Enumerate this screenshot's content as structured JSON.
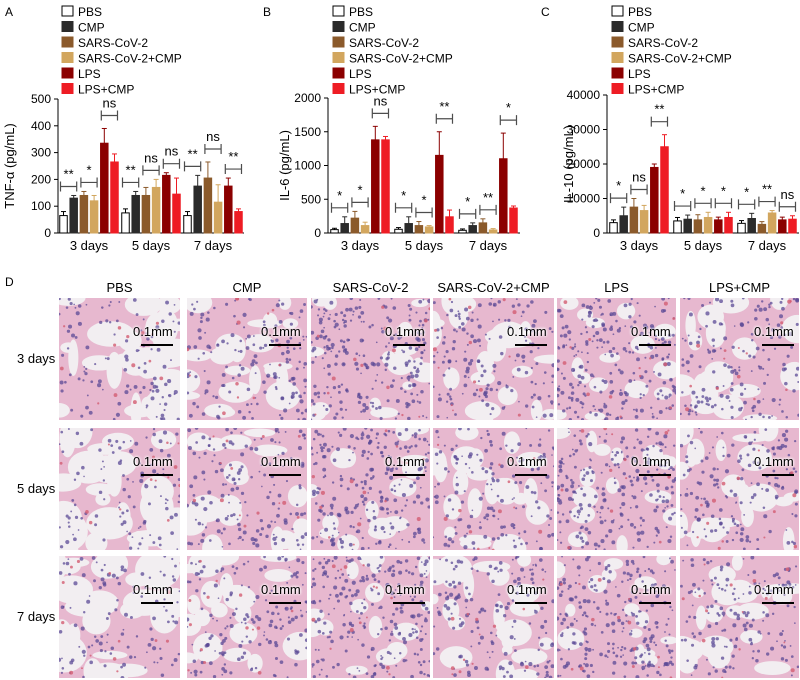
{
  "panel_letters": {
    "A": "A",
    "B": "B",
    "C": "C",
    "D": "D"
  },
  "chart_data": [
    {
      "panel": "A",
      "type": "bar",
      "title": "",
      "xlabel": "",
      "ylabel": "TNF-α (pg/mL)",
      "ylim": [
        0,
        500
      ],
      "yticks": [
        0,
        100,
        200,
        300,
        400,
        500
      ],
      "categories": [
        "3 days",
        "5 days",
        "7 days"
      ],
      "legend": "top-left",
      "grid": false,
      "series": [
        {
          "name": "PBS",
          "values": [
            65,
            75,
            65
          ],
          "errors": [
            15,
            15,
            15
          ]
        },
        {
          "name": "CMP",
          "values": [
            130,
            140,
            175
          ],
          "errors": [
            10,
            15,
            40
          ]
        },
        {
          "name": "SARS-CoV-2",
          "values": [
            140,
            140,
            205
          ],
          "errors": [
            15,
            30,
            60
          ]
        },
        {
          "name": "SARS-CoV-2+CMP",
          "values": [
            120,
            170,
            115
          ],
          "errors": [
            20,
            30,
            65
          ]
        },
        {
          "name": "LPS",
          "values": [
            335,
            215,
            175
          ],
          "errors": [
            55,
            10,
            30
          ]
        },
        {
          "name": "LPS+CMP",
          "values": [
            265,
            145,
            80
          ],
          "errors": [
            30,
            60,
            10
          ]
        }
      ],
      "annotations": [
        {
          "group": 0,
          "from": 0,
          "to": 1,
          "text": "**",
          "level": 1
        },
        {
          "group": 0,
          "from": 2,
          "to": 3,
          "text": "*",
          "level": 1
        },
        {
          "group": 0,
          "from": 4,
          "to": 5,
          "text": "ns",
          "level": 2
        },
        {
          "group": 1,
          "from": 0,
          "to": 1,
          "text": "**",
          "level": 1
        },
        {
          "group": 1,
          "from": 2,
          "to": 3,
          "text": "ns",
          "level": 1
        },
        {
          "group": 1,
          "from": 4,
          "to": 5,
          "text": "ns",
          "level": 1
        },
        {
          "group": 2,
          "from": 0,
          "to": 1,
          "text": "**",
          "level": 1
        },
        {
          "group": 2,
          "from": 2,
          "to": 3,
          "text": "ns",
          "level": 2
        },
        {
          "group": 2,
          "from": 4,
          "to": 5,
          "text": "**",
          "level": 1
        }
      ]
    },
    {
      "panel": "B",
      "type": "bar",
      "title": "",
      "xlabel": "",
      "ylabel": "IL-6 (pg/mL)",
      "ylim": [
        0,
        2000
      ],
      "yticks": [
        0,
        500,
        1000,
        1500,
        2000
      ],
      "categories": [
        "3 days",
        "5 days",
        "7 days"
      ],
      "legend": "top-left",
      "grid": false,
      "series": [
        {
          "name": "PBS",
          "values": [
            50,
            55,
            40
          ],
          "errors": [
            20,
            25,
            20
          ]
        },
        {
          "name": "CMP",
          "values": [
            140,
            140,
            110
          ],
          "errors": [
            100,
            100,
            40
          ]
        },
        {
          "name": "SARS-CoV-2",
          "values": [
            220,
            110,
            150
          ],
          "errors": [
            100,
            60,
            60
          ]
        },
        {
          "name": "SARS-CoV-2+CMP",
          "values": [
            110,
            90,
            45
          ],
          "errors": [
            50,
            20,
            20
          ]
        },
        {
          "name": "LPS",
          "values": [
            1380,
            1150,
            1100
          ],
          "errors": [
            200,
            350,
            380
          ]
        },
        {
          "name": "LPS+CMP",
          "values": [
            1380,
            240,
            370
          ],
          "errors": [
            50,
            100,
            30
          ]
        }
      ],
      "annotations": [
        {
          "group": 0,
          "from": 0,
          "to": 1,
          "text": "*",
          "level": 1
        },
        {
          "group": 0,
          "from": 2,
          "to": 3,
          "text": "*",
          "level": 1
        },
        {
          "group": 0,
          "from": 4,
          "to": 5,
          "text": "ns",
          "level": 2
        },
        {
          "group": 1,
          "from": 0,
          "to": 1,
          "text": "*",
          "level": 1
        },
        {
          "group": 1,
          "from": 2,
          "to": 3,
          "text": "*",
          "level": 1
        },
        {
          "group": 1,
          "from": 4,
          "to": 5,
          "text": "**",
          "level": 2
        },
        {
          "group": 2,
          "from": 0,
          "to": 1,
          "text": "*",
          "level": 1
        },
        {
          "group": 2,
          "from": 2,
          "to": 3,
          "text": "**",
          "level": 1
        },
        {
          "group": 2,
          "from": 4,
          "to": 5,
          "text": "*",
          "level": 2
        }
      ]
    },
    {
      "panel": "C",
      "type": "bar",
      "title": "",
      "xlabel": "",
      "ylabel": "IL-10 (pg/mL)",
      "ylim": [
        0,
        40000
      ],
      "yticks": [
        0,
        10000,
        20000,
        30000,
        40000
      ],
      "categories": [
        "3 days",
        "5 days",
        "7 days"
      ],
      "legend": "top-left",
      "grid": false,
      "series": [
        {
          "name": "PBS",
          "values": [
            3000,
            3500,
            2800
          ],
          "errors": [
            800,
            1000,
            800
          ]
        },
        {
          "name": "CMP",
          "values": [
            5000,
            4000,
            4200
          ],
          "errors": [
            2500,
            1200,
            1500
          ]
        },
        {
          "name": "SARS-CoV-2",
          "values": [
            7500,
            3800,
            2500
          ],
          "errors": [
            2500,
            1500,
            800
          ]
        },
        {
          "name": "SARS-CoV-2+CMP",
          "values": [
            6500,
            4500,
            5800
          ],
          "errors": [
            1500,
            1500,
            700
          ]
        },
        {
          "name": "LPS",
          "values": [
            19000,
            3800,
            3800
          ],
          "errors": [
            1000,
            800,
            800
          ]
        },
        {
          "name": "LPS+CMP",
          "values": [
            25000,
            4500,
            4000
          ],
          "errors": [
            3500,
            1500,
            1000
          ]
        }
      ],
      "annotations": [
        {
          "group": 0,
          "from": 0,
          "to": 1,
          "text": "*",
          "level": 1
        },
        {
          "group": 0,
          "from": 2,
          "to": 3,
          "text": "ns",
          "level": 1
        },
        {
          "group": 0,
          "from": 4,
          "to": 5,
          "text": "**",
          "level": 2
        },
        {
          "group": 1,
          "from": 0,
          "to": 1,
          "text": "*",
          "level": 1
        },
        {
          "group": 1,
          "from": 2,
          "to": 3,
          "text": "*",
          "level": 1
        },
        {
          "group": 1,
          "from": 4,
          "to": 5,
          "text": "*",
          "level": 1
        },
        {
          "group": 2,
          "from": 0,
          "to": 1,
          "text": "*",
          "level": 1
        },
        {
          "group": 2,
          "from": 2,
          "to": 3,
          "text": "**",
          "level": 1
        },
        {
          "group": 2,
          "from": 4,
          "to": 5,
          "text": "ns",
          "level": 1
        }
      ]
    }
  ],
  "series_style": [
    {
      "name": "PBS",
      "fill": "#ffffff",
      "stroke": "#000000"
    },
    {
      "name": "CMP",
      "fill": "#2b2b2b",
      "stroke": "#2b2b2b"
    },
    {
      "name": "SARS-CoV-2",
      "fill": "#8b5a2b",
      "stroke": "#8b5a2b"
    },
    {
      "name": "SARS-CoV-2+CMP",
      "fill": "#d2a65e",
      "stroke": "#d2a65e"
    },
    {
      "name": "LPS",
      "fill": "#8b0000",
      "stroke": "#8b0000"
    },
    {
      "name": "LPS+CMP",
      "fill": "#ee1c24",
      "stroke": "#ee1c24"
    }
  ],
  "colors": {
    "bracket": "#4d4d4d",
    "axis": "#000000"
  },
  "histology": {
    "columns": [
      "PBS",
      "CMP",
      "SARS-CoV-2",
      "SARS-CoV-2+CMP",
      "LPS",
      "LPS+CMP"
    ],
    "rows": [
      "3 days",
      "5 days",
      "7 days"
    ],
    "scale_bar_label": "0.1mm",
    "stain_colors": {
      "background": "#f2eef1",
      "tissue": "#e7b8cf",
      "nuclei": "#5b4a96",
      "rbc": "#d35d72"
    }
  }
}
